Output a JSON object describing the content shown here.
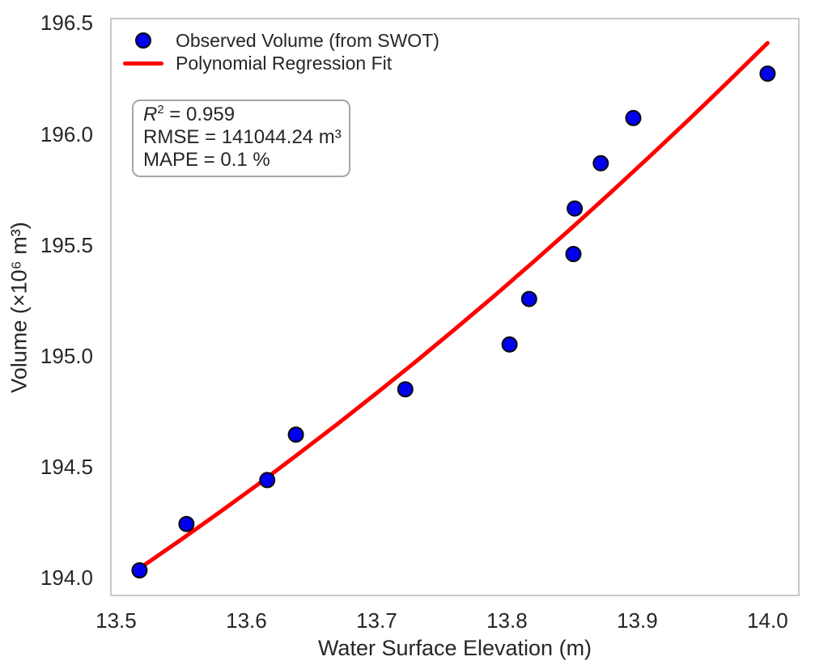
{
  "chart_data": {
    "type": "scatter",
    "title": "",
    "xlabel": "Water Surface Elevation (m)",
    "ylabel": "Volume (×10⁶ m³)",
    "xlim": [
      13.496,
      14.024
    ],
    "ylim": [
      193.92,
      196.52
    ],
    "grid": false,
    "legend_position": "upper-left",
    "x_ticks": [
      13.5,
      13.6,
      13.7,
      13.8,
      13.9,
      14.0
    ],
    "x_tick_labels": [
      "13.5",
      "13.6",
      "13.7",
      "13.8",
      "13.9",
      "14.0"
    ],
    "y_ticks": [
      194.0,
      194.5,
      195.0,
      195.5,
      196.0,
      196.5
    ],
    "y_tick_labels": [
      "194.0",
      "194.5",
      "195.0",
      "195.5",
      "196.0",
      "196.5"
    ],
    "legend": [
      "Observed Volume (from SWOT)",
      "Polynomial Regression Fit"
    ],
    "series": [
      {
        "name": "Observed Volume (from SWOT)",
        "type": "scatter",
        "color": "#0000ee",
        "edge_color": "#0a0a0a",
        "points": [
          [
            13.518,
            194.033
          ],
          [
            13.554,
            194.242
          ],
          [
            13.616,
            194.44
          ],
          [
            13.638,
            194.645
          ],
          [
            13.722,
            194.849
          ],
          [
            13.802,
            195.051
          ],
          [
            13.817,
            195.256
          ],
          [
            13.851,
            195.459
          ],
          [
            13.852,
            195.664
          ],
          [
            13.872,
            195.868
          ],
          [
            13.897,
            196.072
          ],
          [
            14.0,
            196.272
          ]
        ]
      },
      {
        "name": "Polynomial Regression Fit",
        "type": "line",
        "color": "#ff0000",
        "points": [
          [
            13.52,
            194.05
          ],
          [
            13.55,
            194.172
          ],
          [
            13.58,
            194.297
          ],
          [
            13.61,
            194.425
          ],
          [
            13.64,
            194.558
          ],
          [
            13.67,
            194.693
          ],
          [
            13.7,
            194.832
          ],
          [
            13.73,
            194.974
          ],
          [
            13.76,
            195.12
          ],
          [
            13.79,
            195.269
          ],
          [
            13.82,
            195.422
          ],
          [
            13.85,
            195.578
          ],
          [
            13.88,
            195.738
          ],
          [
            13.91,
            195.901
          ],
          [
            13.94,
            196.067
          ],
          [
            13.97,
            196.237
          ],
          [
            14.0,
            196.41
          ]
        ]
      }
    ]
  },
  "stats": {
    "r2": {
      "symbol": "R",
      "sup": "2",
      "rest": " = 0.959"
    },
    "rmse": "RMSE = 141044.24 m³",
    "mape": "MAPE = 0.1 %"
  },
  "colors": {
    "scatter_fill": "#0000ee",
    "scatter_edge": "#0a0a0a",
    "fit_line": "#ff0000",
    "spine": "#c8c8c8",
    "text": "#262626"
  }
}
